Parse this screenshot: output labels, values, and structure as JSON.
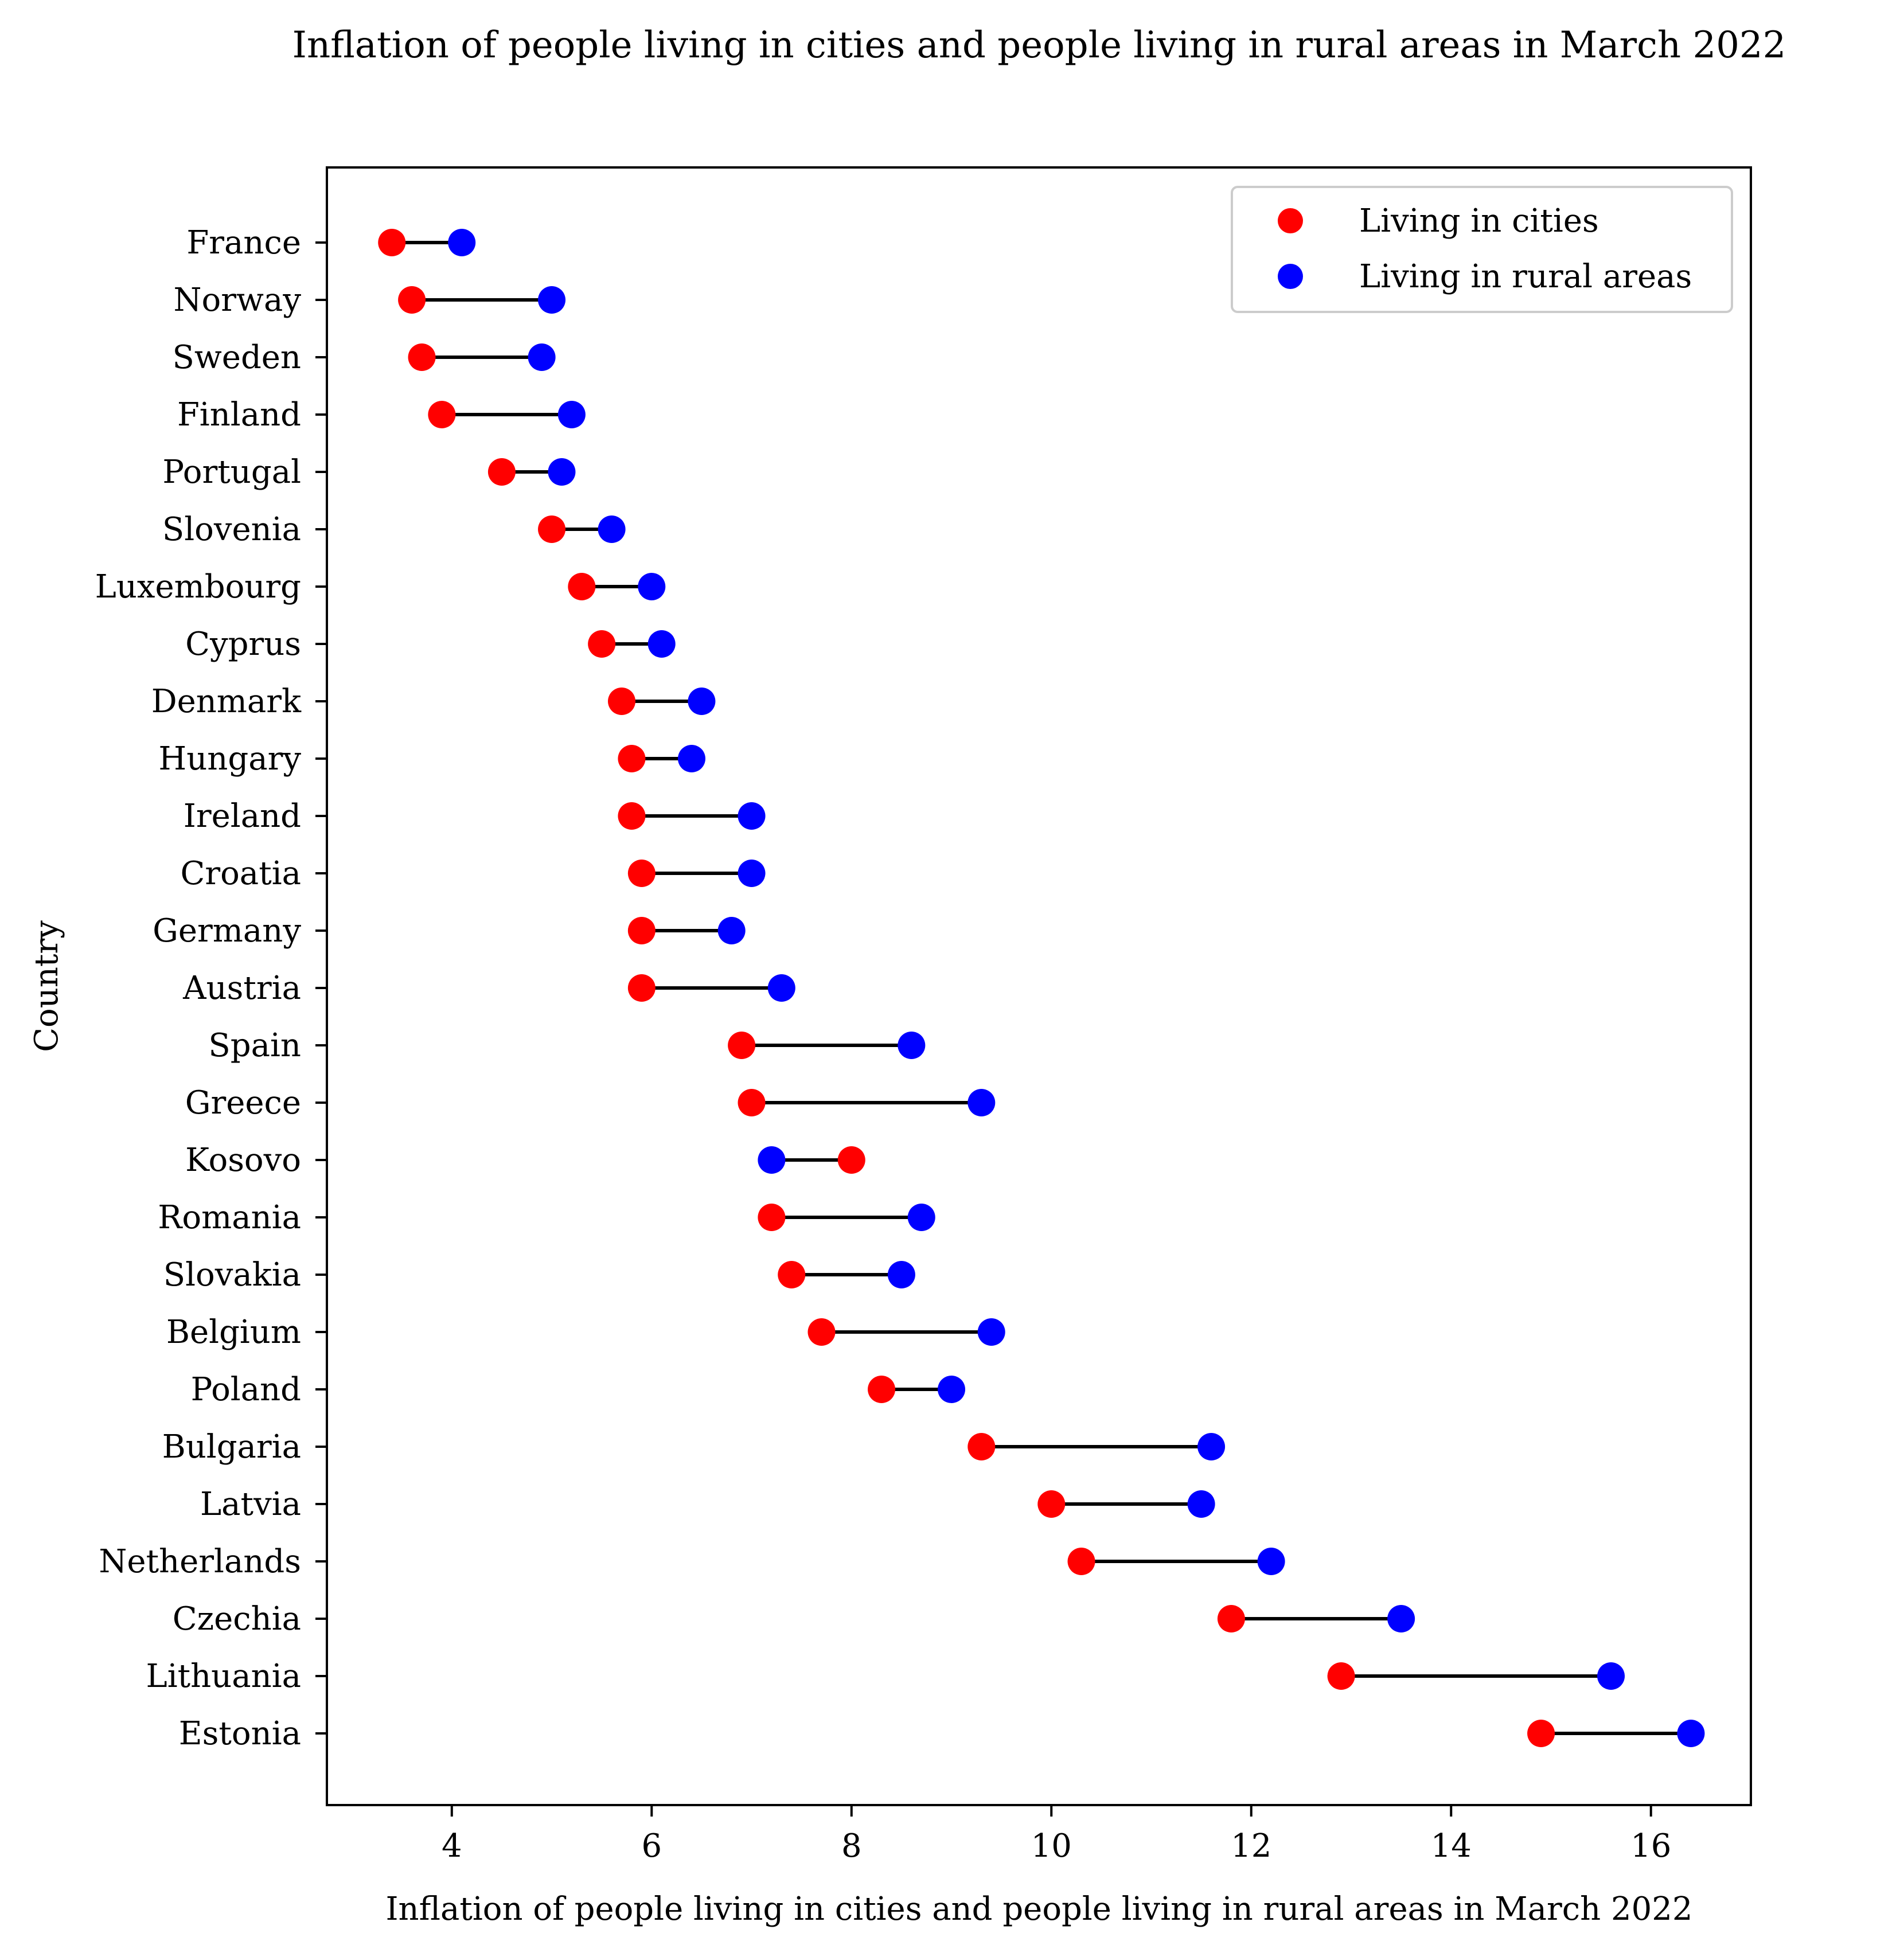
{
  "chart_data": {
    "type": "dumbbell",
    "title": "Inflation of people living in cities and people living in rural areas in March 2022",
    "xlabel": "Inflation of people living in cities and people living in rural areas in March 2022",
    "ylabel": "Country",
    "xlim": [
      2.75,
      17.0
    ],
    "x_ticks": [
      4,
      6,
      8,
      10,
      12,
      14,
      16
    ],
    "grid": false,
    "legend_position": "top-right",
    "categories": [
      "France",
      "Norway",
      "Sweden",
      "Finland",
      "Portugal",
      "Slovenia",
      "Luxembourg",
      "Cyprus",
      "Denmark",
      "Hungary",
      "Ireland",
      "Croatia",
      "Germany",
      "Austria",
      "Spain",
      "Greece",
      "Kosovo",
      "Romania",
      "Slovakia",
      "Belgium",
      "Poland",
      "Bulgaria",
      "Latvia",
      "Netherlands",
      "Czechia",
      "Lithuania",
      "Estonia"
    ],
    "series": [
      {
        "name": "Living in cities",
        "color": "#ff0000",
        "values": [
          3.4,
          3.6,
          3.7,
          3.9,
          4.5,
          5.0,
          5.3,
          5.5,
          5.7,
          5.8,
          5.8,
          5.9,
          5.9,
          5.9,
          6.9,
          7.0,
          8.0,
          7.2,
          7.4,
          7.7,
          8.3,
          9.3,
          10.0,
          10.3,
          11.8,
          12.9,
          14.9
        ]
      },
      {
        "name": "Living in rural areas",
        "color": "#0000ff",
        "values": [
          4.1,
          5.0,
          4.9,
          5.2,
          5.1,
          5.6,
          6.0,
          6.1,
          6.5,
          6.4,
          7.0,
          7.0,
          6.8,
          7.3,
          8.6,
          9.3,
          7.2,
          8.7,
          8.5,
          9.4,
          9.0,
          11.6,
          11.5,
          12.2,
          13.5,
          15.6,
          16.4
        ]
      }
    ],
    "connector_color": "#000000"
  }
}
